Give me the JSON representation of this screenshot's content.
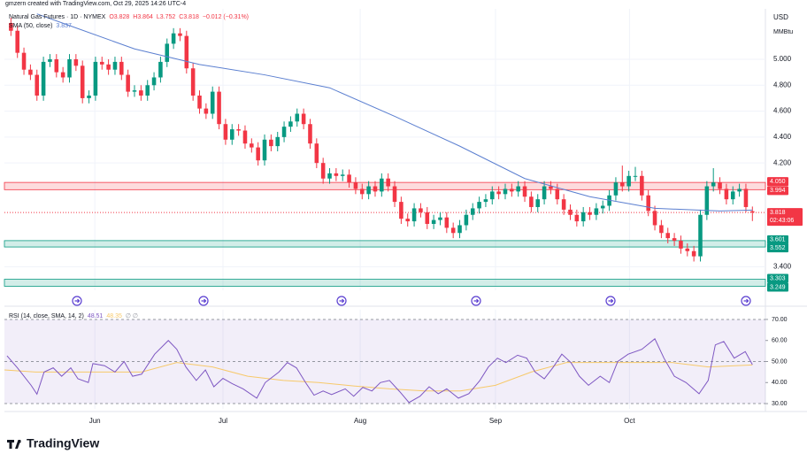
{
  "chart_data": {
    "type": "candlestick",
    "credit": "gmzern created with TradingView.com, Oct 29, 2025 14:26 UTC-4",
    "instrument": "Natural Gas Futures · 1D · NYMEX",
    "ohlc_labels": [
      "O3.828",
      "H3.864",
      "L3.752",
      "C3.818",
      "−0.012 (−0.31%)"
    ],
    "sma_label": "SMA (50, close)",
    "sma_value_label": "3.837",
    "currency": "USD",
    "unit": "MMBtu",
    "brand": "TradingView",
    "up_color": "#089981",
    "down_color": "#f23645",
    "xlim": [
      0,
      117
    ],
    "xticks": [
      {
        "value": 13.9,
        "label": "Jun"
      },
      {
        "value": 33.6,
        "label": "Jul"
      },
      {
        "value": 54.7,
        "label": "Aug"
      },
      {
        "value": 75.5,
        "label": "Sep"
      },
      {
        "value": 96.1,
        "label": "Oct"
      }
    ],
    "ylim": [
      3.218,
      5.389
    ],
    "yticks": [
      {
        "value": 5,
        "label": "5.000"
      },
      {
        "value": 4.8,
        "label": "4.800"
      },
      {
        "value": 4.6,
        "label": "4.600"
      },
      {
        "value": 4.4,
        "label": "4.400"
      },
      {
        "value": 4.2,
        "label": "4.200"
      },
      {
        "value": 3.4,
        "label": "3.400"
      }
    ],
    "grid": true,
    "candles": [
      [
        5.28,
        5.32,
        5.18,
        5.22
      ],
      [
        5.22,
        5.26,
        5.01,
        5.05
      ],
      [
        5.05,
        5.09,
        4.88,
        4.92
      ],
      [
        4.92,
        4.96,
        4.84,
        4.88
      ],
      [
        4.88,
        4.92,
        4.68,
        4.72
      ],
      [
        4.72,
        5.02,
        4.68,
        4.98
      ],
      [
        4.98,
        5.04,
        4.94,
        5.0
      ],
      [
        5.0,
        5.04,
        4.86,
        4.9
      ],
      [
        4.9,
        4.94,
        4.82,
        4.86
      ],
      [
        4.86,
        5.04,
        4.82,
        5.0
      ],
      [
        5.0,
        5.04,
        4.91,
        4.95
      ],
      [
        4.95,
        4.99,
        4.66,
        4.7
      ],
      [
        4.7,
        4.76,
        4.66,
        4.72
      ],
      [
        4.72,
        5.02,
        4.68,
        4.98
      ],
      [
        4.98,
        5.02,
        4.92,
        4.96
      ],
      [
        4.96,
        5.0,
        4.88,
        4.92
      ],
      [
        4.92,
        5.02,
        4.88,
        4.98
      ],
      [
        4.98,
        5.02,
        4.84,
        4.88
      ],
      [
        4.88,
        4.92,
        4.71,
        4.75
      ],
      [
        4.75,
        4.8,
        4.71,
        4.76
      ],
      [
        4.76,
        4.8,
        4.68,
        4.72
      ],
      [
        4.72,
        4.84,
        4.68,
        4.8
      ],
      [
        4.8,
        4.9,
        4.76,
        4.86
      ],
      [
        4.86,
        5.02,
        4.82,
        4.98
      ],
      [
        4.98,
        5.16,
        4.94,
        5.12
      ],
      [
        5.12,
        5.24,
        5.08,
        5.2
      ],
      [
        5.2,
        5.24,
        5.14,
        5.18
      ],
      [
        5.18,
        5.22,
        4.89,
        4.93
      ],
      [
        4.93,
        4.97,
        4.68,
        4.72
      ],
      [
        4.72,
        4.76,
        4.58,
        4.62
      ],
      [
        4.62,
        4.66,
        4.54,
        4.58
      ],
      [
        4.58,
        4.79,
        4.54,
        4.75
      ],
      [
        4.75,
        4.79,
        4.46,
        4.5
      ],
      [
        4.5,
        4.54,
        4.34,
        4.38
      ],
      [
        4.38,
        4.5,
        4.34,
        4.46
      ],
      [
        4.46,
        4.5,
        4.41,
        4.45
      ],
      [
        4.45,
        4.49,
        4.31,
        4.35
      ],
      [
        4.35,
        4.39,
        4.28,
        4.32
      ],
      [
        4.32,
        4.36,
        4.18,
        4.22
      ],
      [
        4.22,
        4.42,
        4.18,
        4.38
      ],
      [
        4.38,
        4.42,
        4.29,
        4.33
      ],
      [
        4.33,
        4.44,
        4.29,
        4.4
      ],
      [
        4.4,
        4.52,
        4.36,
        4.48
      ],
      [
        4.48,
        4.56,
        4.44,
        4.52
      ],
      [
        4.52,
        4.62,
        4.48,
        4.58
      ],
      [
        4.58,
        4.62,
        4.46,
        4.5
      ],
      [
        4.5,
        4.54,
        4.31,
        4.35
      ],
      [
        4.35,
        4.39,
        4.16,
        4.2
      ],
      [
        4.2,
        4.24,
        4.04,
        4.08
      ],
      [
        4.08,
        4.16,
        4.04,
        4.12
      ],
      [
        4.12,
        4.16,
        4.06,
        4.1
      ],
      [
        4.1,
        4.15,
        4.06,
        4.11
      ],
      [
        4.11,
        4.15,
        4.01,
        4.05
      ],
      [
        4.05,
        4.09,
        3.96,
        4.0
      ],
      [
        4.0,
        4.04,
        3.92,
        3.96
      ],
      [
        3.96,
        4.06,
        3.92,
        4.02
      ],
      [
        4.02,
        4.06,
        3.94,
        3.98
      ],
      [
        3.98,
        4.12,
        3.94,
        4.08
      ],
      [
        4.08,
        4.12,
        3.98,
        4.02
      ],
      [
        4.02,
        4.06,
        3.86,
        3.9
      ],
      [
        3.9,
        3.94,
        3.73,
        3.77
      ],
      [
        3.77,
        3.81,
        3.71,
        3.75
      ],
      [
        3.75,
        3.89,
        3.71,
        3.85
      ],
      [
        3.85,
        3.89,
        3.78,
        3.82
      ],
      [
        3.82,
        3.86,
        3.69,
        3.73
      ],
      [
        3.73,
        3.8,
        3.69,
        3.76
      ],
      [
        3.76,
        3.82,
        3.72,
        3.78
      ],
      [
        3.78,
        3.82,
        3.66,
        3.7
      ],
      [
        3.7,
        3.74,
        3.62,
        3.66
      ],
      [
        3.66,
        3.76,
        3.62,
        3.72
      ],
      [
        3.72,
        3.84,
        3.68,
        3.8
      ],
      [
        3.8,
        3.89,
        3.76,
        3.85
      ],
      [
        3.85,
        3.94,
        3.81,
        3.9
      ],
      [
        3.9,
        3.96,
        3.86,
        3.92
      ],
      [
        3.92,
        4.02,
        3.88,
        3.98
      ],
      [
        3.98,
        4.02,
        3.92,
        3.96
      ],
      [
        3.96,
        4.04,
        3.92,
        4.0
      ],
      [
        4.0,
        4.04,
        3.94,
        3.98
      ],
      [
        3.98,
        4.06,
        3.94,
        4.02
      ],
      [
        4.02,
        4.06,
        3.9,
        3.94
      ],
      [
        3.94,
        3.98,
        3.82,
        3.86
      ],
      [
        3.86,
        3.96,
        3.82,
        3.92
      ],
      [
        3.92,
        4.06,
        3.88,
        4.02
      ],
      [
        4.02,
        4.06,
        3.96,
        4.0
      ],
      [
        4.0,
        4.04,
        3.88,
        3.92
      ],
      [
        3.92,
        3.96,
        3.8,
        3.84
      ],
      [
        3.84,
        3.88,
        3.76,
        3.8
      ],
      [
        3.8,
        3.84,
        3.71,
        3.75
      ],
      [
        3.75,
        3.86,
        3.71,
        3.82
      ],
      [
        3.82,
        3.86,
        3.76,
        3.8
      ],
      [
        3.8,
        3.89,
        3.76,
        3.85
      ],
      [
        3.85,
        3.91,
        3.81,
        3.87
      ],
      [
        3.87,
        3.99,
        3.83,
        3.95
      ],
      [
        3.95,
        4.09,
        3.91,
        4.05
      ],
      [
        4.05,
        4.18,
        3.98,
        4.02
      ],
      [
        4.02,
        4.14,
        3.98,
        4.1
      ],
      [
        4.1,
        4.17,
        4.06,
        4.1
      ],
      [
        4.1,
        4.14,
        3.91,
        3.95
      ],
      [
        3.95,
        3.99,
        3.79,
        3.83
      ],
      [
        3.83,
        3.87,
        3.68,
        3.72
      ],
      [
        3.72,
        3.76,
        3.62,
        3.66
      ],
      [
        3.66,
        3.7,
        3.58,
        3.62
      ],
      [
        3.62,
        3.66,
        3.56,
        3.6
      ],
      [
        3.6,
        3.64,
        3.5,
        3.54
      ],
      [
        3.54,
        3.58,
        3.48,
        3.52
      ],
      [
        3.52,
        3.56,
        3.44,
        3.48
      ],
      [
        3.48,
        3.84,
        3.44,
        3.8
      ],
      [
        3.8,
        4.06,
        3.76,
        4.02
      ],
      [
        4.02,
        4.16,
        3.98,
        4.05
      ],
      [
        4.05,
        4.09,
        3.96,
        4.0
      ],
      [
        4.0,
        4.04,
        3.88,
        3.92
      ],
      [
        3.92,
        4.02,
        3.88,
        3.98
      ],
      [
        3.98,
        4.04,
        3.94,
        4.0
      ],
      [
        4.0,
        4.04,
        3.82,
        3.86
      ],
      [
        3.828,
        3.864,
        3.752,
        3.818
      ]
    ],
    "sma": {
      "color": "#5b7fd0",
      "x": [
        5,
        10,
        20,
        30,
        40,
        50,
        60,
        70,
        80,
        90,
        100,
        110,
        115
      ],
      "values": [
        5.35,
        5.26,
        5.08,
        4.96,
        4.88,
        4.78,
        4.56,
        4.33,
        4.08,
        3.94,
        3.85,
        3.83,
        3.837
      ]
    },
    "zones": [
      {
        "values": [
          4.05,
          3.994
        ],
        "value_labels": [
          "4.050",
          "3.994"
        ],
        "color": "#f23645"
      },
      {
        "values": [
          3.601,
          3.552
        ],
        "value_labels": [
          "3.601",
          "3.552"
        ],
        "color": "#089981"
      },
      {
        "values": [
          3.303,
          3.249
        ],
        "value_labels": [
          "3.303",
          "3.249"
        ],
        "color": "#089981"
      }
    ],
    "last_price": 3.818,
    "last_price_label": "3.818",
    "countdown": "02:43:06",
    "rsi": {
      "label": "RSI (14, close, SMA, 14, 2)",
      "empty_labels": "∅ ∅",
      "color": "#7e57c2",
      "ylim": [
        27.5,
        74.6
      ],
      "yticks": [
        {
          "value": 70,
          "label": "70.00"
        },
        {
          "value": 60,
          "label": "60.00"
        },
        {
          "value": 50,
          "label": "50.00"
        },
        {
          "value": 40,
          "label": "40.00"
        },
        {
          "value": 30,
          "label": "30.00"
        }
      ],
      "band": [
        30,
        70
      ],
      "dashed": [
        70,
        50,
        30
      ],
      "x": [
        0.4,
        2.0,
        4.1,
        5.0,
        6.1,
        7.5,
        8.8,
        10.2,
        11.3,
        12.9,
        13.6,
        15.4,
        17.0,
        18.4,
        19.7,
        21.1,
        23.1,
        25.2,
        26.5,
        27.9,
        29.5,
        30.9,
        32.2,
        33.6,
        35.0,
        36.7,
        38.8,
        40.1,
        42.2,
        43.5,
        44.9,
        46.3,
        47.6,
        49.0,
        50.3,
        52.4,
        53.7,
        55.1,
        56.5,
        57.8,
        59.2,
        60.8,
        62.2,
        63.9,
        65.3,
        66.7,
        68.0,
        69.8,
        71.4,
        73.1,
        74.4,
        75.8,
        77.1,
        78.9,
        80.3,
        81.6,
        83.0,
        84.4,
        85.7,
        87.1,
        88.4,
        89.8,
        91.6,
        93.0,
        94.3,
        95.9,
        98.0,
        100.0,
        101.4,
        103.0,
        104.8,
        106.8,
        108.2,
        109.3,
        110.6,
        112.2,
        113.9,
        115.0
      ],
      "values": [
        52.7,
        47,
        38.7,
        34.5,
        45,
        47,
        43,
        47,
        41.8,
        40,
        49,
        48,
        45,
        50,
        43,
        44,
        53.5,
        60,
        55.8,
        47.4,
        41,
        46,
        38,
        42,
        39.5,
        37,
        32.6,
        40,
        45,
        49.5,
        47,
        40,
        34,
        36,
        34.3,
        37,
        33.5,
        37.7,
        36,
        40,
        41,
        35.6,
        30.5,
        33.5,
        38,
        34.7,
        37,
        32.6,
        34.7,
        41,
        47.4,
        51.6,
        49.5,
        53,
        51.6,
        45,
        41.8,
        47.4,
        53.5,
        49.5,
        43,
        38.7,
        43,
        40,
        50,
        53.5,
        55.8,
        60.8,
        51.6,
        43,
        40,
        34.7,
        41,
        57.9,
        59.5,
        51.6,
        54.7,
        48.51
      ]
    },
    "rsi_sma": {
      "color": "#f7c96a",
      "x": [
        0,
        4.8,
        10.2,
        15.6,
        21.1,
        26.5,
        32,
        37.4,
        42.9,
        48.3,
        53.7,
        59.2,
        64.6,
        70.1,
        75.5,
        81,
        86.4,
        91.8,
        97.3,
        102.7,
        108.2,
        115
      ],
      "values": [
        46,
        45,
        45,
        45,
        45,
        49.5,
        47.4,
        43,
        41,
        40,
        38.4,
        37,
        36,
        36,
        38.7,
        45,
        49.5,
        49.5,
        49.5,
        49.5,
        47.4,
        48.35
      ]
    }
  }
}
